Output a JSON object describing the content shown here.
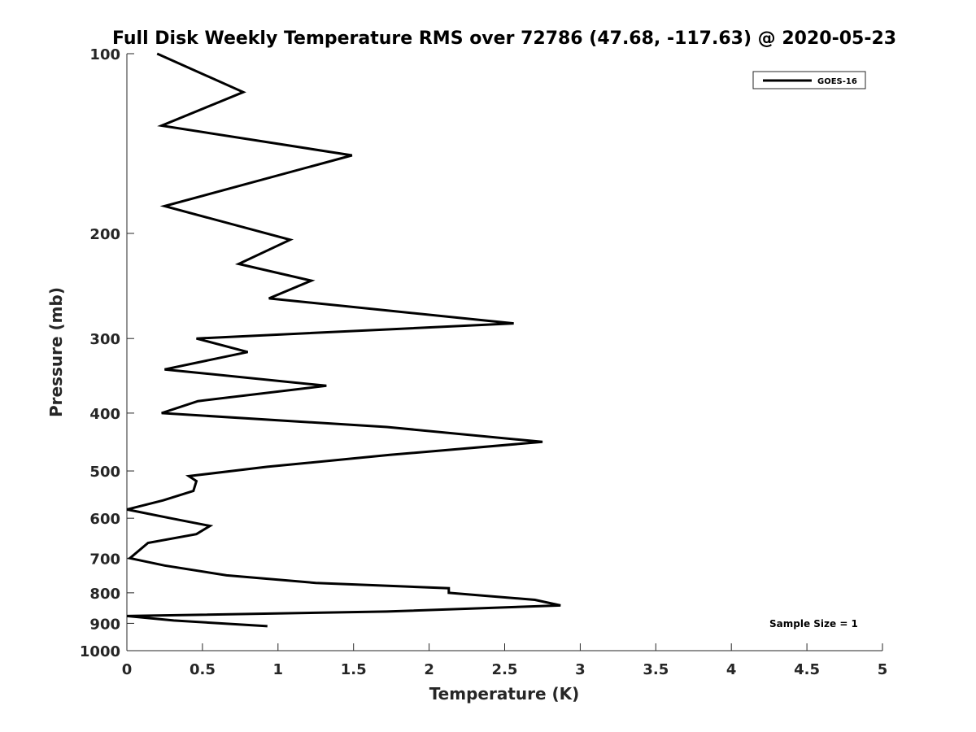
{
  "chart_data": {
    "type": "line",
    "title": "Full Disk Weekly Temperature RMS over 72786 (47.68, -117.63) @ 2020-05-23",
    "xlabel": "Temperature (K)",
    "ylabel": "Pressure (mb)",
    "xlim": [
      0,
      5
    ],
    "ylim": [
      100,
      1000
    ],
    "y_scale": "log",
    "y_reversed": true,
    "grid": false,
    "legend_position": "top-right",
    "x_ticks": [
      0,
      0.5,
      1,
      1.5,
      2,
      2.5,
      3,
      3.5,
      4,
      4.5,
      5
    ],
    "x_tick_labels": [
      "0",
      "0.5",
      "1",
      "1.5",
      "2",
      "2.5",
      "3",
      "3.5",
      "4",
      "4.5",
      "5"
    ],
    "y_ticks": [
      100,
      200,
      300,
      400,
      500,
      600,
      700,
      800,
      900,
      1000
    ],
    "y_tick_labels": [
      "100",
      "200",
      "300",
      "400",
      "500",
      "600",
      "700",
      "800",
      "900",
      "1000"
    ],
    "series": [
      {
        "name": "GOES-16",
        "color": "#000000",
        "x": [
          0.2,
          0.77,
          0.23,
          1.49,
          0.25,
          1.08,
          0.74,
          1.22,
          0.94,
          2.56,
          0.46,
          0.8,
          0.25,
          1.32,
          0.47,
          0.23,
          1.72,
          2.75,
          1.74,
          0.93,
          0.41,
          0.46,
          0.44,
          0.24,
          0.0,
          0.29,
          0.55,
          0.46,
          0.14,
          0.02,
          0.25,
          0.66,
          1.25,
          2.13,
          2.13,
          2.7,
          2.87,
          1.72,
          0.0,
          0.31,
          0.93
        ],
        "y": [
          100,
          116,
          132,
          148,
          180,
          205,
          225,
          240,
          257,
          283,
          300,
          316,
          338,
          360,
          382,
          400,
          422,
          447,
          470,
          492,
          510,
          520,
          540,
          560,
          580,
          600,
          618,
          638,
          660,
          700,
          720,
          748,
          770,
          786,
          800,
          822,
          840,
          860,
          875,
          890,
          910
        ]
      }
    ],
    "annotations": [
      "Sample Size = 1"
    ]
  }
}
